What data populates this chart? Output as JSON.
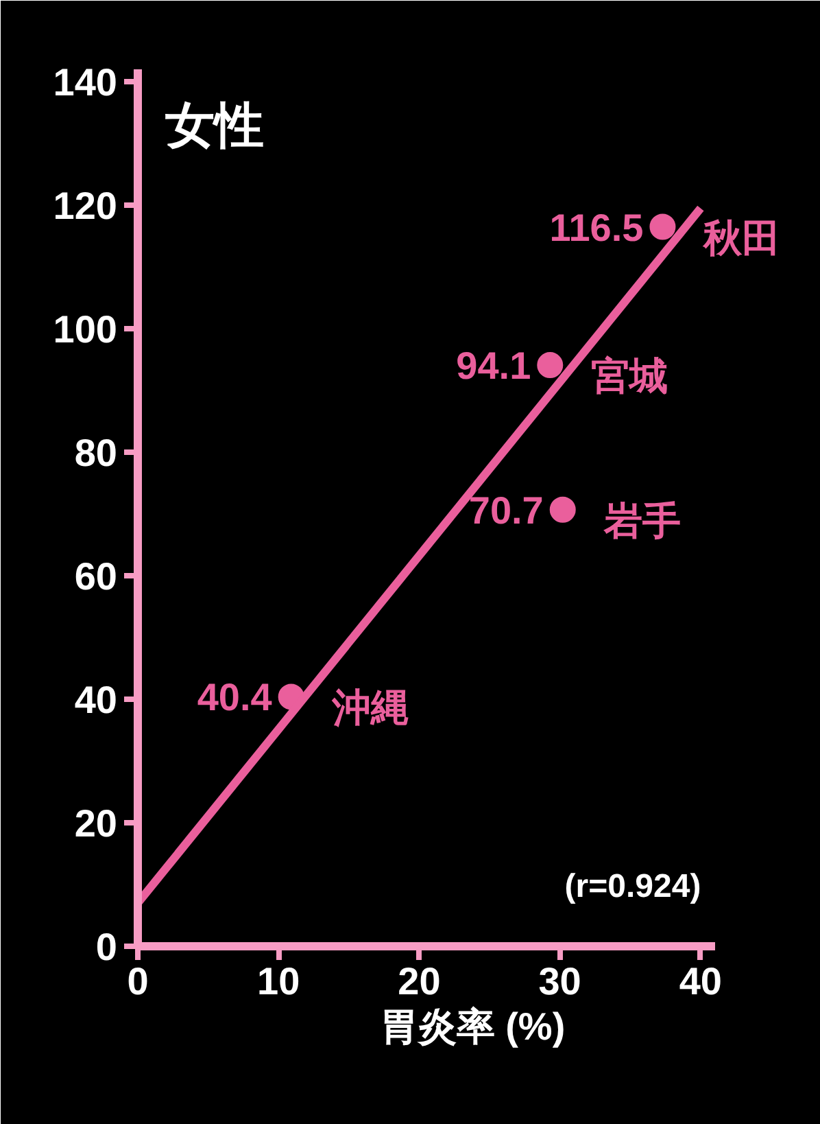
{
  "chart_data": {
    "type": "scatter",
    "title": "女性",
    "xlabel": "胃炎率 (%)",
    "x": [
      37.3,
      29.3,
      30.2,
      10.9
    ],
    "series": [
      {
        "color": "#ea5f9c",
        "marker": "circle",
        "values": [
          116.5,
          94.1,
          70.7,
          40.4
        ],
        "value_labels": [
          "116.5",
          "94.1",
          "70.7",
          "40.4"
        ]
      },
      {
        "type": "line",
        "color": "#ea5f9c",
        "x": [
          0,
          40
        ],
        "values": [
          7,
          119.5
        ]
      }
    ],
    "annotations": [
      {
        "text": "秋田",
        "x": 37.3,
        "y": 116.5
      },
      {
        "text": "宮城",
        "x": 29.3,
        "y": 94.1
      },
      {
        "text": "岩手",
        "x": 30.2,
        "y": 70.7
      },
      {
        "text": "沖縄",
        "x": 10.9,
        "y": 40.4
      },
      "(r=0.924)"
    ],
    "xlim": [
      0,
      41
    ],
    "ylim": [
      0,
      142
    ],
    "xticks": [
      0,
      10,
      20,
      30,
      40
    ],
    "yticks": [
      0,
      20,
      40,
      60,
      80,
      100,
      120,
      140
    ],
    "grid": false,
    "line_style": "solid"
  }
}
